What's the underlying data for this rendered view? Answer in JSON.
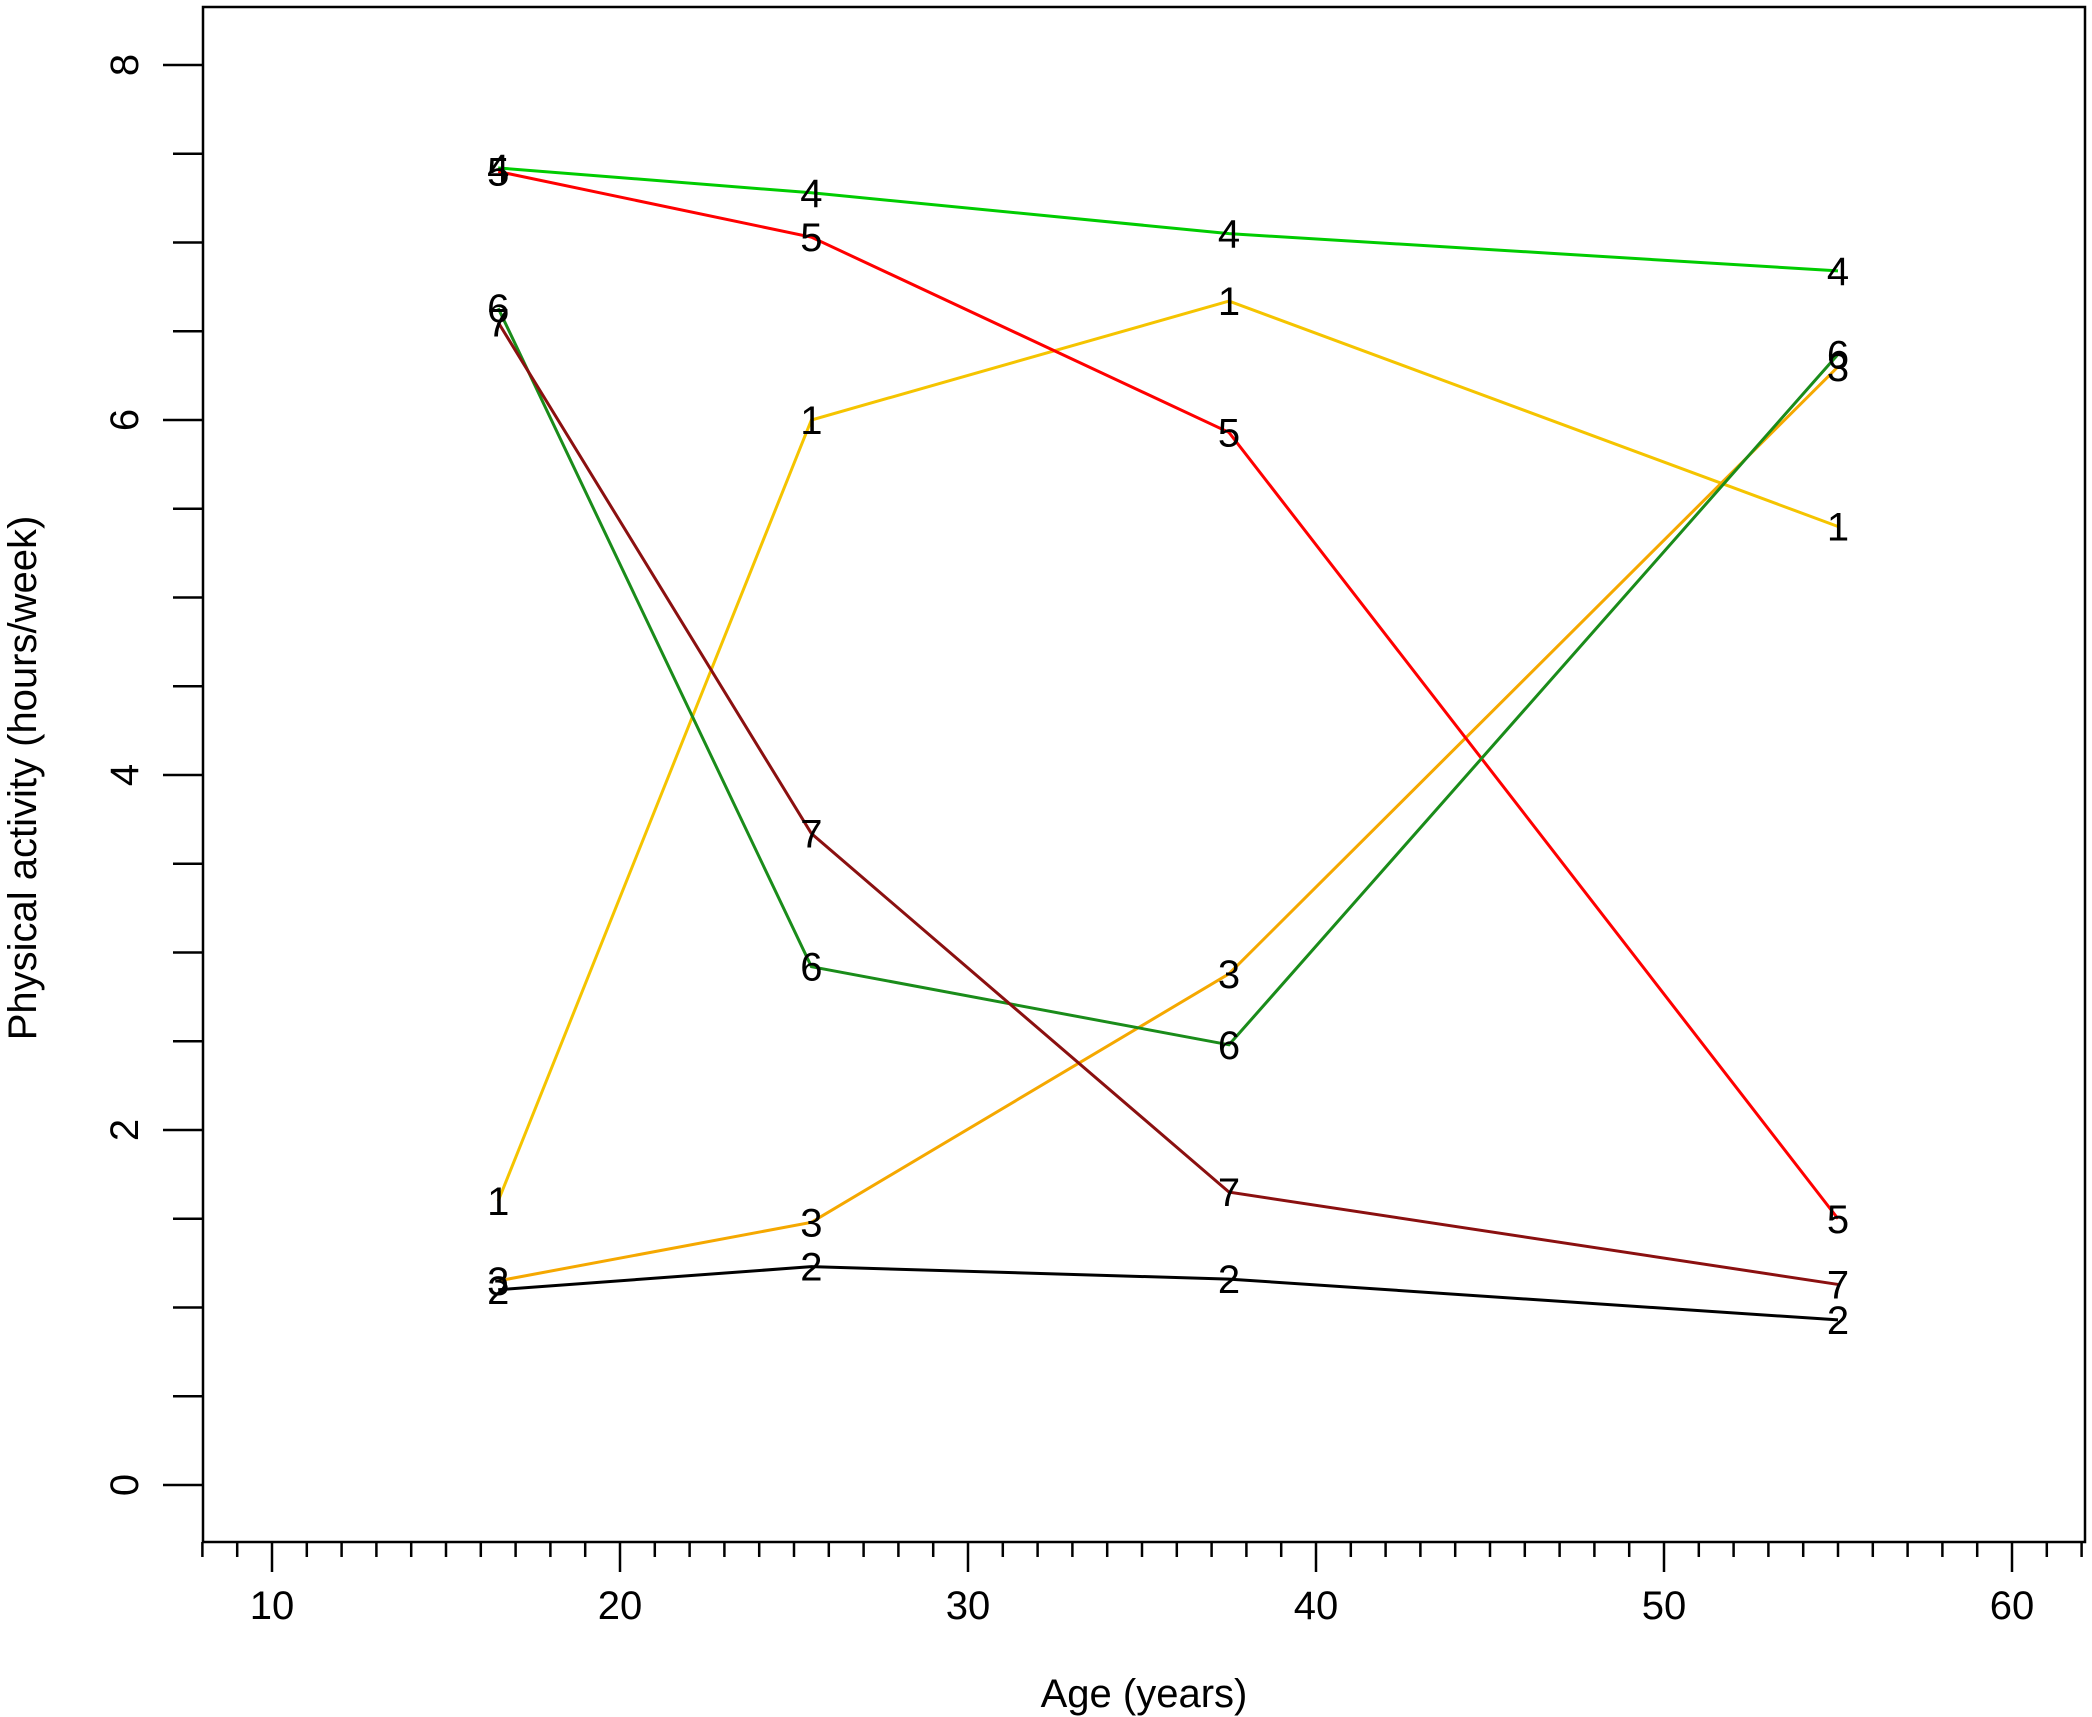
{
  "chart_data": {
    "type": "line",
    "title": "",
    "xlabel": "Age (years)",
    "ylabel": "Physical activity (hours/week)",
    "xlim": [
      8,
      62
    ],
    "ylim": [
      -0.6,
      8.3
    ],
    "x_major_ticks": [
      10,
      20,
      30,
      40,
      50,
      60
    ],
    "x_minor_ticks": [
      8,
      9,
      11,
      12,
      13,
      14,
      15,
      16,
      17,
      18,
      19,
      21,
      22,
      23,
      24,
      25,
      26,
      27,
      28,
      29,
      31,
      32,
      33,
      34,
      35,
      36,
      37,
      38,
      39,
      41,
      42,
      43,
      44,
      45,
      46,
      47,
      48,
      49,
      51,
      52,
      53,
      54,
      55,
      56,
      57,
      58,
      59,
      61,
      62
    ],
    "y_major_ticks": [
      0,
      2,
      4,
      6,
      8
    ],
    "y_minor_ticks": [
      0.5,
      1,
      1.5,
      2.5,
      3,
      3.5,
      4.5,
      5,
      5.5,
      6.5,
      7,
      7.5
    ],
    "x_tick_labels": [
      "10",
      "20",
      "30",
      "40",
      "50",
      "60"
    ],
    "y_tick_labels": [
      "0",
      "2",
      "4",
      "6",
      "8"
    ],
    "grid": false,
    "legend": "none",
    "series": [
      {
        "label": "1",
        "color": "#f5c400",
        "x": [
          16.5,
          25.5,
          37.5,
          55
        ],
        "y": [
          1.6,
          6.0,
          6.67,
          5.4
        ]
      },
      {
        "label": "2",
        "color": "#000000",
        "x": [
          16.5,
          25.5,
          37.5,
          55
        ],
        "y": [
          1.1,
          1.23,
          1.16,
          0.93
        ]
      },
      {
        "label": "3",
        "color": "#f5a800",
        "x": [
          16.5,
          25.5,
          37.5,
          55
        ],
        "y": [
          1.15,
          1.48,
          2.88,
          6.3
        ]
      },
      {
        "label": "4",
        "color": "#00cc00",
        "x": [
          16.5,
          25.5,
          37.5,
          55
        ],
        "y": [
          7.42,
          7.28,
          7.05,
          6.84
        ]
      },
      {
        "label": "5",
        "color": "#ff0000",
        "x": [
          16.5,
          25.5,
          37.5,
          55
        ],
        "y": [
          7.4,
          7.03,
          5.93,
          1.5
        ]
      },
      {
        "label": "6",
        "color": "#1a8c1a",
        "x": [
          16.5,
          25.5,
          37.5,
          55
        ],
        "y": [
          6.63,
          2.92,
          2.48,
          6.37
        ]
      },
      {
        "label": "7",
        "color": "#8b1010",
        "x": [
          16.5,
          25.5,
          37.5,
          55
        ],
        "y": [
          6.55,
          3.67,
          1.65,
          1.13
        ]
      }
    ]
  }
}
